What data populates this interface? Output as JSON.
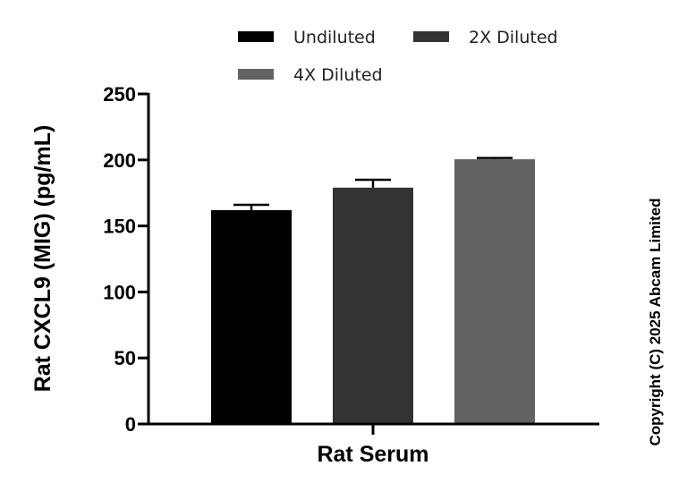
{
  "chart_data": {
    "type": "bar",
    "categories": [
      "Rat Serum"
    ],
    "series": [
      {
        "name": "Undiluted",
        "values": [
          162
        ],
        "error": [
          4
        ],
        "color": "#000000"
      },
      {
        "name": "2X Diluted",
        "values": [
          179
        ],
        "error": [
          6
        ],
        "color": "#333333"
      },
      {
        "name": "4X Diluted",
        "values": [
          200.5
        ],
        "error": [
          1
        ],
        "color": "#636363"
      }
    ],
    "xlabel": "Rat Serum",
    "ylabel": "Rat CXCL9 (MIG) (pg/mL)",
    "ylim": [
      0,
      250
    ],
    "yticks": [
      0,
      50,
      100,
      150,
      200,
      250
    ],
    "grid": false,
    "legend_position": "top"
  },
  "copyright": "Copyright (C) 2025 Abcam Limited"
}
